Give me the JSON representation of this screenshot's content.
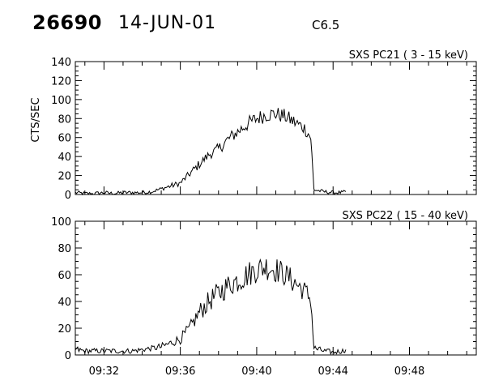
{
  "header": {
    "event_id": "26690",
    "date": "14-JUN-01",
    "flare_class": "C6.5"
  },
  "chart_data": [
    {
      "type": "line",
      "title": "SXS PC21  (  3 - 15 keV)",
      "xlabel": "",
      "ylabel": "CTS/SEC",
      "x_unit": "UT",
      "xlim": [
        "09:30:30",
        "09:51:30"
      ],
      "ylim": [
        0,
        140
      ],
      "yticks": [
        0,
        20,
        40,
        60,
        80,
        100,
        120,
        140
      ],
      "grid": false,
      "series": [
        {
          "x": [
            "09:30:30",
            "09:31:00",
            "09:31:30",
            "09:32:00",
            "09:32:30",
            "09:33:00",
            "09:33:30",
            "09:34:00",
            "09:34:30",
            "09:35:00",
            "09:35:30",
            "09:36:00",
            "09:36:30",
            "09:37:00",
            "09:37:30",
            "09:38:00",
            "09:38:30",
            "09:39:00",
            "09:39:30",
            "09:40:00",
            "09:40:30",
            "09:41:00",
            "09:41:30",
            "09:42:00",
            "09:42:30",
            "09:42:50",
            "09:43:00",
            "09:43:30",
            "09:44:00",
            "09:44:30",
            "09:44:40"
          ],
          "y": [
            2,
            1,
            1,
            2,
            1,
            2,
            2,
            2,
            3,
            6,
            9,
            12,
            22,
            32,
            42,
            48,
            58,
            66,
            74,
            80,
            84,
            85,
            82,
            76,
            70,
            60,
            5,
            3,
            2,
            2,
            3
          ],
          "noise": [
            2,
            2,
            2,
            2,
            2,
            2,
            2,
            2,
            2,
            2,
            3,
            3,
            4,
            5,
            5,
            6,
            7,
            7,
            8,
            8,
            8,
            8,
            8,
            8,
            7,
            7,
            2,
            2,
            2,
            2,
            2
          ]
        }
      ]
    },
    {
      "type": "line",
      "title": "SXS PC22  ( 15 - 40 keV)",
      "xlabel": "",
      "ylabel": "",
      "x_unit": "UT",
      "xlim": [
        "09:30:30",
        "09:51:30"
      ],
      "ylim": [
        0,
        100
      ],
      "yticks": [
        0,
        20,
        40,
        60,
        80,
        100
      ],
      "xticks": [
        "09:32",
        "09:36",
        "09:40",
        "09:44",
        "09:48"
      ],
      "grid": false,
      "series": [
        {
          "x": [
            "09:30:30",
            "09:31:00",
            "09:31:30",
            "09:32:00",
            "09:32:30",
            "09:33:00",
            "09:33:30",
            "09:34:00",
            "09:34:30",
            "09:35:00",
            "09:35:30",
            "09:36:00",
            "09:36:30",
            "09:37:00",
            "09:37:30",
            "09:38:00",
            "09:38:30",
            "09:39:00",
            "09:39:30",
            "09:40:00",
            "09:40:30",
            "09:41:00",
            "09:41:30",
            "09:42:00",
            "09:42:30",
            "09:42:50",
            "09:43:00",
            "09:43:30",
            "09:44:00",
            "09:44:30",
            "09:44:40"
          ],
          "y": [
            4,
            3,
            3,
            3,
            3,
            3,
            3,
            4,
            5,
            6,
            9,
            12,
            20,
            32,
            40,
            46,
            52,
            56,
            60,
            64,
            66,
            64,
            60,
            54,
            48,
            42,
            5,
            3,
            2,
            3,
            4
          ],
          "noise": [
            3,
            2,
            2,
            2,
            2,
            2,
            2,
            2,
            2,
            3,
            3,
            4,
            5,
            7,
            8,
            9,
            9,
            10,
            10,
            10,
            10,
            10,
            9,
            9,
            8,
            8,
            3,
            2,
            2,
            2,
            2
          ]
        }
      ]
    }
  ]
}
